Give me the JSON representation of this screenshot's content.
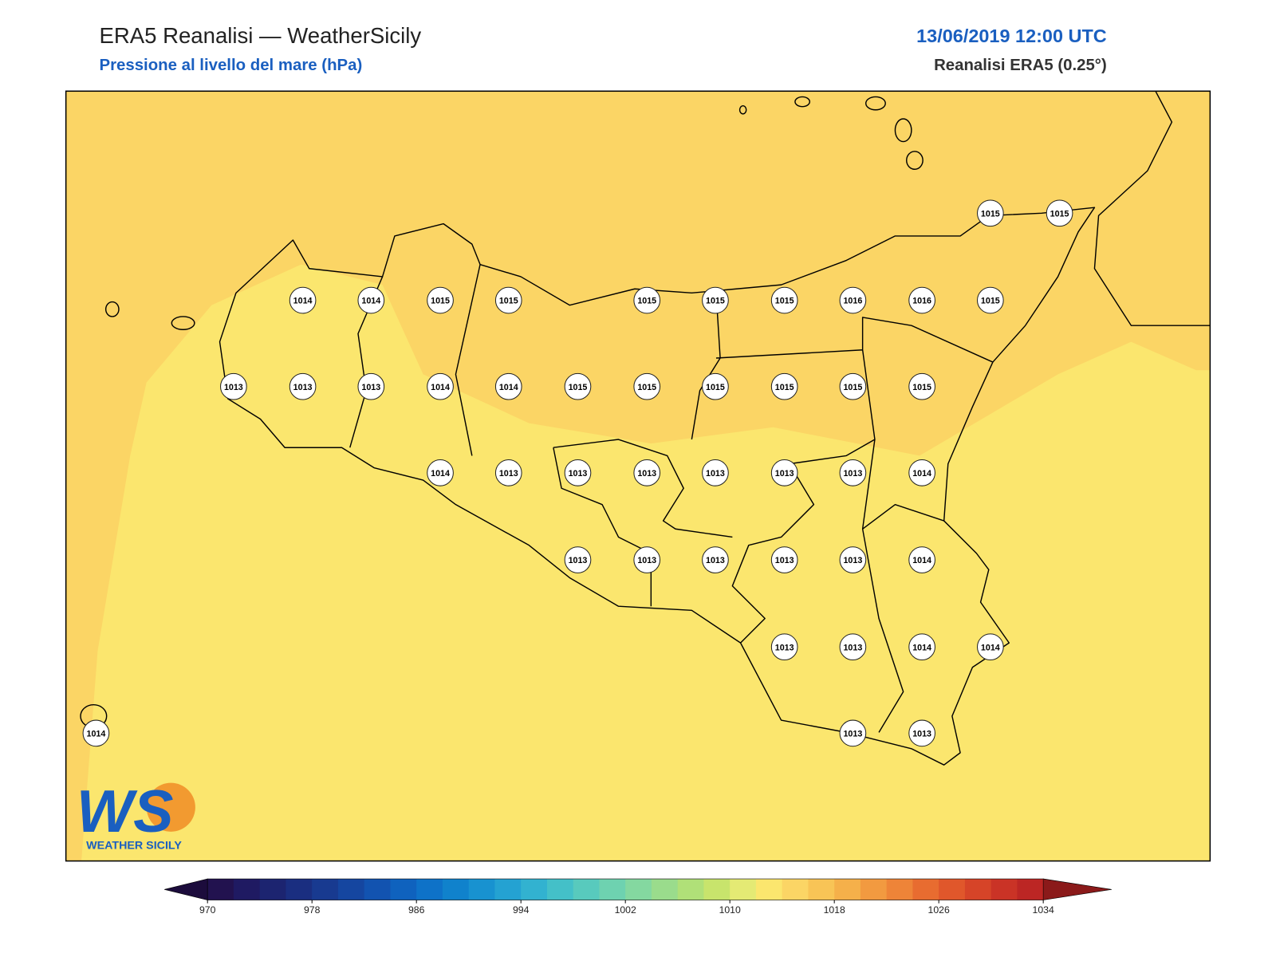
{
  "header": {
    "title": "ERA5 Reanalisi — WeatherSicily",
    "subtitle": "Pressione al livello del mare (hPa)",
    "date": "13/06/2019 12:00 UTC",
    "source": "Reanalisi ERA5 (0.25°)"
  },
  "stations": [
    1015,
    1015,
    1014,
    1014,
    1015,
    1015,
    1015,
    1015,
    1015,
    1016,
    1016,
    1015,
    1013,
    1013,
    1013,
    1014,
    1014,
    1015,
    1015,
    1015,
    1015,
    1015,
    1015,
    1014,
    1013,
    1013,
    1013,
    1013,
    1013,
    1013,
    1014,
    1013,
    1013,
    1013,
    1013,
    1013,
    1014,
    1013,
    1013,
    1014,
    1014,
    1014,
    1013,
    1013
  ],
  "colorbar": {
    "ticks": [
      970,
      978,
      986,
      994,
      1002,
      1010,
      1018,
      1026,
      1034
    ],
    "colors": [
      "#22124f",
      "#1f1a62",
      "#1c2470",
      "#1a2e80",
      "#183a90",
      "#1546a0",
      "#1253b0",
      "#0f62be",
      "#0e72c8",
      "#1082cc",
      "#1892d0",
      "#24a2d2",
      "#32b2d0",
      "#44c0c8",
      "#58cabd",
      "#6ed2b0",
      "#84d8a0",
      "#9adc8c",
      "#b0e078",
      "#c8e46c",
      "#e4ea74",
      "#fbe66e",
      "#fbd565",
      "#f8c456",
      "#f5b04a",
      "#f29a40",
      "#ee8438",
      "#e86c30",
      "#e0572b",
      "#d64428",
      "#ca3326",
      "#bc2624"
    ],
    "under": "#1c0c3c",
    "over": "#8b1a1a"
  },
  "logo": {
    "mark": "WS",
    "name": "WEATHER SICILY"
  }
}
